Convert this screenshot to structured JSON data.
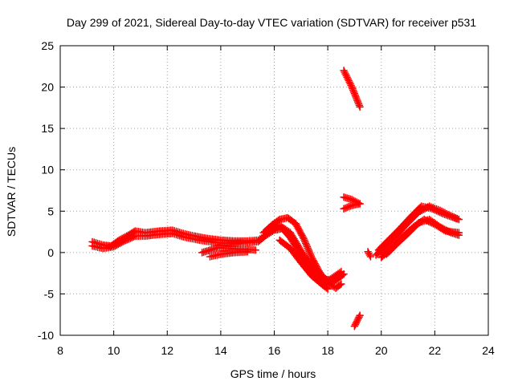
{
  "chart_data": {
    "type": "scatter",
    "title": "Day 299 of 2021, Sidereal Day-to-day VTEC variation (SDTVAR) for receiver p531",
    "xlabel": "GPS time / hours",
    "ylabel": "SDTVAR / TECUs",
    "xlim": [
      8,
      24
    ],
    "ylim": [
      -10,
      25
    ],
    "x_ticks": [
      "8",
      "10",
      "12",
      "14",
      "16",
      "18",
      "20",
      "22",
      "24"
    ],
    "y_ticks": [
      "-10",
      "-5",
      "0",
      "5",
      "10",
      "15",
      "20",
      "25"
    ],
    "grid": true,
    "marker_color": "#ff0000",
    "series": [
      {
        "name": "s1",
        "points": [
          [
            9.2,
            1.3
          ],
          [
            9.6,
            0.9
          ],
          [
            9.9,
            0.8
          ],
          [
            10.2,
            1.5
          ],
          [
            10.6,
            2.2
          ],
          [
            10.8,
            2.6
          ],
          [
            11.2,
            2.4
          ],
          [
            11.7,
            2.6
          ],
          [
            12.2,
            2.7
          ],
          [
            12.6,
            2.3
          ],
          [
            13.0,
            2.0
          ],
          [
            13.5,
            1.7
          ],
          [
            14.0,
            1.5
          ],
          [
            14.5,
            1.4
          ],
          [
            15.0,
            1.4
          ],
          [
            15.4,
            1.5
          ],
          [
            15.7,
            2.1
          ],
          [
            16.0,
            2.7
          ],
          [
            16.3,
            2.9
          ],
          [
            16.6,
            1.8
          ],
          [
            17.0,
            -0.3
          ],
          [
            17.4,
            -2.3
          ],
          [
            17.8,
            -3.5
          ],
          [
            18.1,
            -3.2
          ],
          [
            18.5,
            -2.3
          ]
        ]
      },
      {
        "name": "s2",
        "points": [
          [
            9.2,
            0.8
          ],
          [
            9.6,
            0.5
          ],
          [
            10.0,
            0.7
          ],
          [
            10.4,
            1.4
          ],
          [
            10.8,
            2.0
          ],
          [
            11.2,
            2.0
          ],
          [
            11.7,
            2.2
          ],
          [
            12.2,
            2.3
          ],
          [
            12.6,
            1.9
          ],
          [
            13.2,
            1.5
          ],
          [
            13.8,
            1.2
          ],
          [
            14.4,
            1.1
          ],
          [
            15.0,
            1.2
          ],
          [
            15.4,
            1.3
          ],
          [
            15.8,
            2.4
          ],
          [
            16.2,
            3.3
          ],
          [
            16.6,
            2.4
          ],
          [
            17.0,
            0.2
          ],
          [
            17.4,
            -1.8
          ],
          [
            17.8,
            -3.0
          ],
          [
            18.2,
            -3.6
          ],
          [
            18.6,
            -2.6
          ]
        ]
      },
      {
        "name": "s3",
        "points": [
          [
            13.3,
            0.0
          ],
          [
            13.6,
            0.3
          ],
          [
            13.9,
            0.6
          ],
          [
            14.3,
            0.5
          ],
          [
            14.8,
            0.4
          ],
          [
            15.3,
            0.3
          ]
        ]
      },
      {
        "name": "s4",
        "points": [
          [
            13.6,
            -0.5
          ],
          [
            14.0,
            -0.2
          ],
          [
            14.5,
            0.0
          ],
          [
            15.0,
            0.1
          ]
        ]
      },
      {
        "name": "s5",
        "points": [
          [
            15.6,
            2.4
          ],
          [
            15.9,
            3.3
          ],
          [
            16.2,
            4.0
          ],
          [
            16.5,
            4.2
          ],
          [
            16.8,
            3.5
          ],
          [
            17.1,
            1.7
          ],
          [
            17.4,
            -0.6
          ],
          [
            17.7,
            -2.4
          ],
          [
            18.0,
            -3.7
          ],
          [
            18.3,
            -4.3
          ],
          [
            18.5,
            -3.8
          ]
        ]
      },
      {
        "name": "s6",
        "points": [
          [
            16.2,
            1.5
          ],
          [
            16.6,
            0.5
          ],
          [
            17.0,
            -1.2
          ],
          [
            17.4,
            -2.8
          ],
          [
            17.8,
            -3.9
          ],
          [
            18.0,
            -4.4
          ]
        ]
      },
      {
        "name": "s7",
        "points": [
          [
            18.6,
            22.0
          ],
          [
            18.9,
            20.0
          ],
          [
            19.2,
            17.6
          ]
        ]
      },
      {
        "name": "s8",
        "points": [
          [
            18.6,
            6.7
          ],
          [
            18.9,
            6.4
          ],
          [
            19.2,
            5.9
          ]
        ]
      },
      {
        "name": "s9",
        "points": [
          [
            18.6,
            5.3
          ],
          [
            18.9,
            5.7
          ],
          [
            19.2,
            5.9
          ]
        ]
      },
      {
        "name": "s10",
        "points": [
          [
            19.0,
            -8.9
          ],
          [
            19.2,
            -7.6
          ]
        ]
      },
      {
        "name": "s11",
        "points": [
          [
            19.5,
            0.1
          ],
          [
            19.6,
            -0.5
          ]
        ]
      },
      {
        "name": "s12",
        "points": [
          [
            19.8,
            -0.3
          ],
          [
            20.2,
            0.9
          ],
          [
            20.6,
            2.2
          ],
          [
            21.0,
            3.6
          ],
          [
            21.4,
            4.9
          ],
          [
            21.8,
            5.6
          ],
          [
            22.2,
            5.1
          ],
          [
            22.5,
            4.6
          ],
          [
            22.9,
            4.0
          ]
        ]
      },
      {
        "name": "s13",
        "points": [
          [
            19.9,
            0.3
          ],
          [
            20.3,
            1.6
          ],
          [
            20.7,
            2.9
          ],
          [
            21.1,
            4.3
          ],
          [
            21.5,
            5.6
          ],
          [
            21.9,
            5.3
          ],
          [
            22.3,
            4.7
          ],
          [
            22.8,
            4.1
          ]
        ]
      },
      {
        "name": "s14",
        "points": [
          [
            20.0,
            -0.6
          ],
          [
            20.4,
            0.6
          ],
          [
            20.8,
            1.9
          ],
          [
            21.2,
            3.1
          ],
          [
            21.6,
            4.0
          ],
          [
            22.0,
            3.4
          ],
          [
            22.4,
            2.6
          ],
          [
            22.9,
            2.4
          ]
        ]
      },
      {
        "name": "s15",
        "points": [
          [
            20.2,
            -0.2
          ],
          [
            20.6,
            1.1
          ],
          [
            21.0,
            2.3
          ],
          [
            21.4,
            3.6
          ],
          [
            21.8,
            4.0
          ],
          [
            22.2,
            3.1
          ],
          [
            22.6,
            2.4
          ],
          [
            22.9,
            2.1
          ]
        ]
      }
    ]
  }
}
